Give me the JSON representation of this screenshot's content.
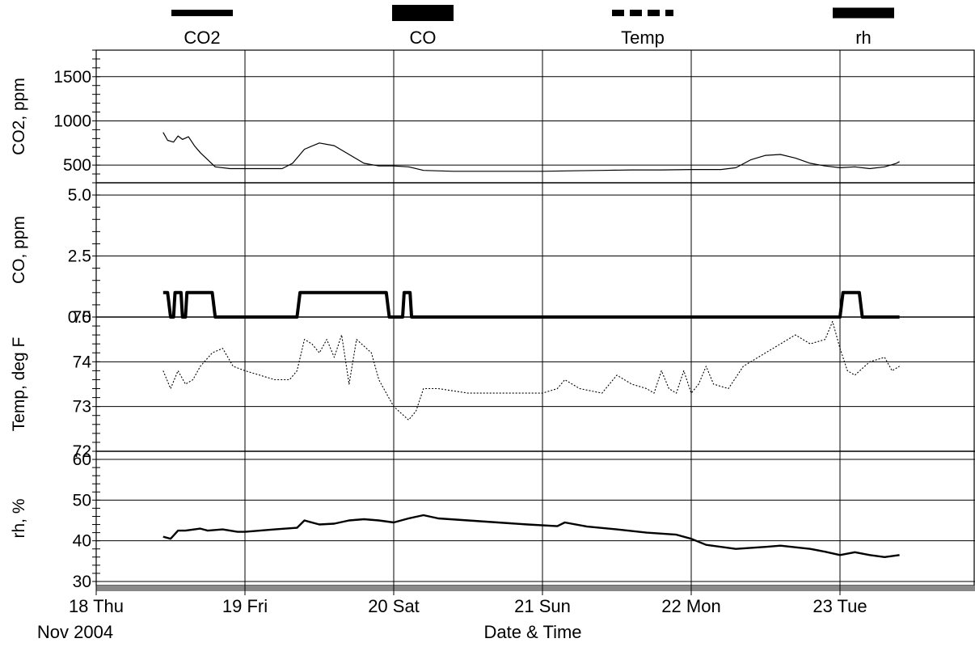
{
  "chart_data": {
    "type": "line",
    "legend": {
      "placement": "top",
      "entries": [
        {
          "name": "CO2",
          "style": "thin-solid"
        },
        {
          "name": "CO",
          "style": "thick-solid"
        },
        {
          "name": "Temp",
          "style": "dashed"
        },
        {
          "name": "rh",
          "style": "solid"
        }
      ]
    },
    "xlabel": "Date & Time",
    "x_start_label": "Nov 2004",
    "x_ticks": [
      {
        "x": 0,
        "label": "18 Thu"
      },
      {
        "x": 1,
        "label": "19 Fri"
      },
      {
        "x": 2,
        "label": "20 Sat"
      },
      {
        "x": 3,
        "label": "21 Sun"
      },
      {
        "x": 4,
        "label": "22 Mon"
      },
      {
        "x": 5,
        "label": "23 Tue"
      }
    ],
    "xlim": [
      0,
      6.0
    ],
    "grid": true,
    "panels": [
      {
        "name": "CO2",
        "ylabel": "CO2, ppm",
        "ylim": [
          300,
          1800
        ],
        "yticks": [
          500,
          1000,
          1500
        ],
        "tick_labels": [
          "500",
          "1000",
          "1500"
        ],
        "line": "thin",
        "series": {
          "name": "CO2",
          "points": [
            [
              0.45,
              870
            ],
            [
              0.48,
              780
            ],
            [
              0.52,
              760
            ],
            [
              0.55,
              830
            ],
            [
              0.58,
              790
            ],
            [
              0.62,
              820
            ],
            [
              0.66,
              720
            ],
            [
              0.7,
              640
            ],
            [
              0.75,
              560
            ],
            [
              0.8,
              480
            ],
            [
              0.9,
              460
            ],
            [
              1.0,
              460
            ],
            [
              1.1,
              460
            ],
            [
              1.25,
              460
            ],
            [
              1.32,
              520
            ],
            [
              1.4,
              680
            ],
            [
              1.5,
              750
            ],
            [
              1.6,
              720
            ],
            [
              1.7,
              620
            ],
            [
              1.8,
              520
            ],
            [
              1.9,
              490
            ],
            [
              2.0,
              490
            ],
            [
              2.1,
              480
            ],
            [
              2.2,
              440
            ],
            [
              2.4,
              430
            ],
            [
              2.6,
              430
            ],
            [
              2.8,
              430
            ],
            [
              3.0,
              430
            ],
            [
              3.2,
              435
            ],
            [
              3.4,
              440
            ],
            [
              3.6,
              445
            ],
            [
              3.8,
              445
            ],
            [
              4.0,
              450
            ],
            [
              4.2,
              450
            ],
            [
              4.3,
              470
            ],
            [
              4.4,
              560
            ],
            [
              4.5,
              610
            ],
            [
              4.6,
              620
            ],
            [
              4.7,
              580
            ],
            [
              4.8,
              520
            ],
            [
              4.9,
              490
            ],
            [
              5.0,
              470
            ],
            [
              5.1,
              480
            ],
            [
              5.2,
              460
            ],
            [
              5.3,
              480
            ],
            [
              5.38,
              520
            ],
            [
              5.4,
              540
            ]
          ]
        }
      },
      {
        "name": "CO",
        "ylabel": "CO, ppm",
        "ylim": [
          0,
          5.5
        ],
        "yticks": [
          0,
          2.5,
          5
        ],
        "tick_labels": [
          "0.0",
          "2.5",
          "5.0"
        ],
        "line": "thick-step",
        "series": {
          "name": "CO",
          "points": [
            [
              0.45,
              1.0
            ],
            [
              0.48,
              1.0
            ],
            [
              0.5,
              0
            ],
            [
              0.52,
              0
            ],
            [
              0.53,
              1.0
            ],
            [
              0.57,
              1.0
            ],
            [
              0.58,
              0
            ],
            [
              0.6,
              0
            ],
            [
              0.61,
              1.0
            ],
            [
              0.78,
              1.0
            ],
            [
              0.8,
              0
            ],
            [
              0.83,
              0
            ],
            [
              0.83,
              0
            ],
            [
              1.35,
              0
            ],
            [
              1.37,
              1.0
            ],
            [
              1.95,
              1.0
            ],
            [
              1.97,
              0
            ],
            [
              2.06,
              0
            ],
            [
              2.07,
              1.0
            ],
            [
              2.11,
              1.0
            ],
            [
              2.12,
              0
            ],
            [
              5.0,
              0
            ],
            [
              5.02,
              1.0
            ],
            [
              5.13,
              1.0
            ],
            [
              5.15,
              0
            ],
            [
              5.4,
              0
            ]
          ]
        }
      },
      {
        "name": "Temp",
        "ylabel": "Temp, deg F",
        "ylim": [
          72,
          75
        ],
        "yticks": [
          72,
          73,
          74,
          75
        ],
        "tick_labels": [
          "72",
          "73",
          "74",
          "75"
        ],
        "line": "dotted",
        "series": {
          "name": "Temp",
          "points": [
            [
              0.45,
              73.8
            ],
            [
              0.5,
              73.4
            ],
            [
              0.55,
              73.8
            ],
            [
              0.6,
              73.5
            ],
            [
              0.65,
              73.6
            ],
            [
              0.7,
              73.9
            ],
            [
              0.78,
              74.2
            ],
            [
              0.85,
              74.3
            ],
            [
              0.92,
              73.9
            ],
            [
              1.0,
              73.8
            ],
            [
              1.1,
              73.7
            ],
            [
              1.2,
              73.6
            ],
            [
              1.3,
              73.6
            ],
            [
              1.35,
              73.8
            ],
            [
              1.4,
              74.5
            ],
            [
              1.45,
              74.4
            ],
            [
              1.5,
              74.2
            ],
            [
              1.55,
              74.5
            ],
            [
              1.6,
              74.1
            ],
            [
              1.65,
              74.6
            ],
            [
              1.7,
              73.5
            ],
            [
              1.75,
              74.5
            ],
            [
              1.85,
              74.2
            ],
            [
              1.9,
              73.6
            ],
            [
              2.0,
              73.0
            ],
            [
              2.1,
              72.7
            ],
            [
              2.15,
              72.9
            ],
            [
              2.2,
              73.4
            ],
            [
              2.3,
              73.4
            ],
            [
              2.5,
              73.3
            ],
            [
              2.7,
              73.3
            ],
            [
              3.0,
              73.3
            ],
            [
              3.1,
              73.4
            ],
            [
              3.15,
              73.6
            ],
            [
              3.25,
              73.4
            ],
            [
              3.4,
              73.3
            ],
            [
              3.5,
              73.7
            ],
            [
              3.6,
              73.5
            ],
            [
              3.7,
              73.4
            ],
            [
              3.75,
              73.3
            ],
            [
              3.8,
              73.8
            ],
            [
              3.85,
              73.4
            ],
            [
              3.9,
              73.3
            ],
            [
              3.95,
              73.8
            ],
            [
              4.0,
              73.3
            ],
            [
              4.05,
              73.5
            ],
            [
              4.1,
              73.9
            ],
            [
              4.15,
              73.5
            ],
            [
              4.25,
              73.4
            ],
            [
              4.35,
              73.9
            ],
            [
              4.45,
              74.1
            ],
            [
              4.6,
              74.4
            ],
            [
              4.7,
              74.6
            ],
            [
              4.8,
              74.4
            ],
            [
              4.9,
              74.5
            ],
            [
              4.95,
              74.9
            ],
            [
              5.0,
              74.3
            ],
            [
              5.05,
              73.8
            ],
            [
              5.1,
              73.7
            ],
            [
              5.2,
              74.0
            ],
            [
              5.3,
              74.1
            ],
            [
              5.35,
              73.8
            ],
            [
              5.4,
              73.9
            ]
          ]
        }
      },
      {
        "name": "rh",
        "ylabel": "rh, %",
        "ylim": [
          29,
          62
        ],
        "yticks": [
          30,
          40,
          50,
          60
        ],
        "tick_labels": [
          "30",
          "40",
          "50",
          "60"
        ],
        "line": "medium",
        "series": {
          "name": "rh",
          "points": [
            [
              0.45,
              41
            ],
            [
              0.5,
              40.5
            ],
            [
              0.55,
              42.5
            ],
            [
              0.6,
              42.5
            ],
            [
              0.7,
              43
            ],
            [
              0.75,
              42.5
            ],
            [
              0.85,
              42.8
            ],
            [
              0.95,
              42.2
            ],
            [
              1.0,
              42.2
            ],
            [
              1.2,
              42.8
            ],
            [
              1.35,
              43.2
            ],
            [
              1.4,
              45
            ],
            [
              1.5,
              44
            ],
            [
              1.6,
              44.2
            ],
            [
              1.7,
              45
            ],
            [
              1.8,
              45.3
            ],
            [
              1.9,
              45
            ],
            [
              2.0,
              44.5
            ],
            [
              2.1,
              45.5
            ],
            [
              2.2,
              46.3
            ],
            [
              2.3,
              45.5
            ],
            [
              2.5,
              45
            ],
            [
              2.7,
              44.5
            ],
            [
              2.9,
              44
            ],
            [
              3.1,
              43.6
            ],
            [
              3.15,
              44.5
            ],
            [
              3.3,
              43.5
            ],
            [
              3.5,
              42.8
            ],
            [
              3.7,
              42
            ],
            [
              3.9,
              41.5
            ],
            [
              4.0,
              40.5
            ],
            [
              4.1,
              39
            ],
            [
              4.3,
              38
            ],
            [
              4.5,
              38.5
            ],
            [
              4.6,
              38.8
            ],
            [
              4.8,
              38
            ],
            [
              4.9,
              37.3
            ],
            [
              5.0,
              36.5
            ],
            [
              5.1,
              37.2
            ],
            [
              5.2,
              36.5
            ],
            [
              5.3,
              36
            ],
            [
              5.4,
              36.5
            ]
          ]
        }
      }
    ]
  }
}
